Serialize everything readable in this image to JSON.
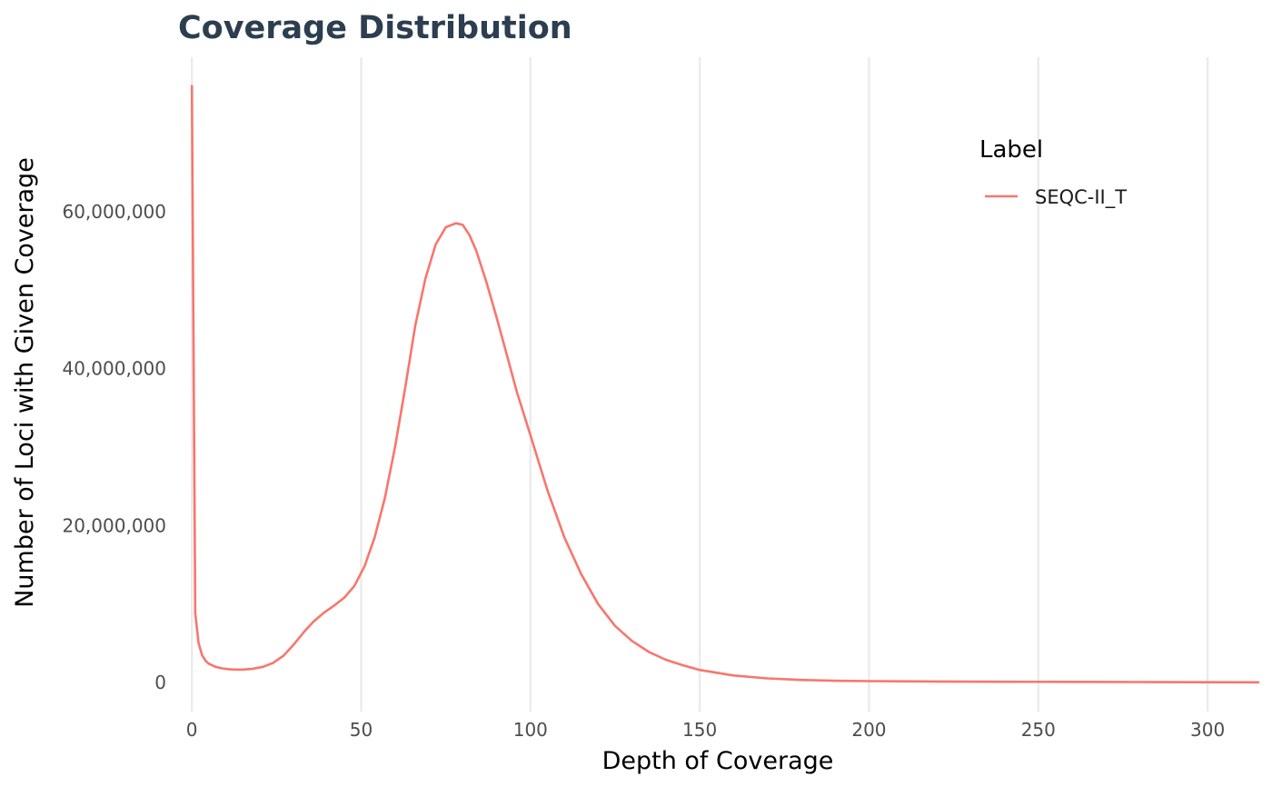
{
  "chart_data": {
    "type": "line",
    "title": "Coverage Distribution",
    "title_color": "#2c3e50",
    "xlabel": "Depth of Coverage",
    "ylabel": "Number of Loci with Given Coverage",
    "xlim": [
      -3,
      315
    ],
    "ylim": [
      -3700000,
      80000000
    ],
    "x_ticks": [
      0,
      50,
      100,
      150,
      200,
      250,
      300
    ],
    "x_tick_labels": [
      "0",
      "50",
      "100",
      "150",
      "200",
      "250",
      "300"
    ],
    "y_ticks": [
      0,
      20000000,
      40000000,
      60000000
    ],
    "y_tick_labels": [
      "0",
      "20,000,000",
      "40,000,000",
      "60,000,000"
    ],
    "grid": {
      "vertical_major": true,
      "horizontal_major": false
    },
    "legend": {
      "title": "Label",
      "position": "top-right"
    },
    "series": [
      {
        "name": "SEQC-II_T",
        "color": "#f8766d",
        "x": [
          0,
          1,
          2,
          3,
          4,
          5,
          7,
          9,
          11,
          13,
          15,
          18,
          21,
          24,
          27,
          30,
          33,
          36,
          39,
          42,
          45,
          48,
          51,
          54,
          57,
          60,
          63,
          66,
          69,
          72,
          75,
          78,
          80,
          82,
          84,
          87,
          90,
          93,
          96,
          100,
          105,
          110,
          115,
          120,
          125,
          130,
          135,
          140,
          145,
          150,
          160,
          170,
          180,
          190,
          200,
          220,
          240,
          260,
          280,
          300,
          315
        ],
        "y": [
          76000000,
          8800000,
          5000000,
          3500000,
          2800000,
          2400000,
          2000000,
          1800000,
          1700000,
          1650000,
          1650000,
          1750000,
          2000000,
          2500000,
          3400000,
          4800000,
          6400000,
          7800000,
          8900000,
          9800000,
          10800000,
          12300000,
          14800000,
          18500000,
          23500000,
          30000000,
          37500000,
          45500000,
          51500000,
          55800000,
          58000000,
          58500000,
          58300000,
          57000000,
          55000000,
          51000000,
          46500000,
          41800000,
          37000000,
          31500000,
          24500000,
          18500000,
          13800000,
          10000000,
          7200000,
          5300000,
          3900000,
          2900000,
          2200000,
          1600000,
          900000,
          520000,
          330000,
          230000,
          180000,
          130000,
          100000,
          80000,
          60000,
          40000,
          30000
        ]
      }
    ]
  }
}
